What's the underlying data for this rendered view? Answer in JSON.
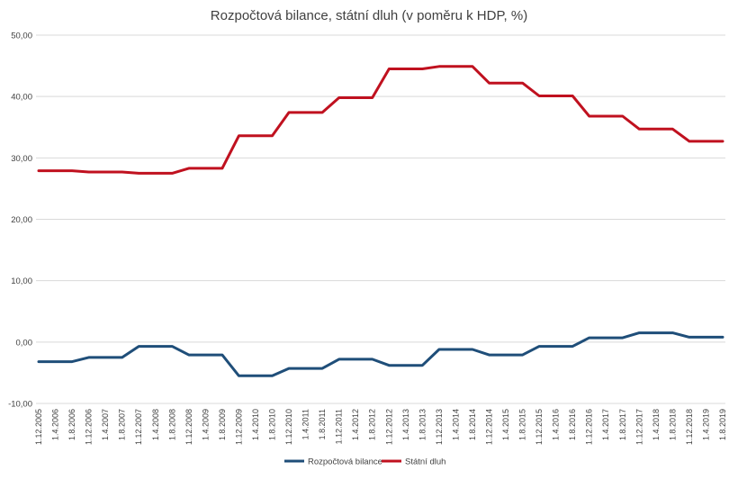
{
  "chart_data": {
    "type": "line",
    "title": "Rozpočtová bilance, státní dluh (v poměru k HDP, %)",
    "xlabel": "",
    "ylabel": "",
    "ylim": [
      -10,
      50
    ],
    "yticks": [
      "-10,00",
      "0,00",
      "10,00",
      "20,00",
      "30,00",
      "40,00",
      "50,00"
    ],
    "ytick_values": [
      -10,
      0,
      10,
      20,
      30,
      40,
      50
    ],
    "grid": true,
    "legend": "bottom",
    "categories": [
      "1.12.2005",
      "1.4.2006",
      "1.8.2006",
      "1.12.2006",
      "1.4.2007",
      "1.8.2007",
      "1.12.2007",
      "1.4.2008",
      "1.8.2008",
      "1.12.2008",
      "1.4.2009",
      "1.8.2009",
      "1.12.2009",
      "1.4.2010",
      "1.8.2010",
      "1.12.2010",
      "1.4.2011",
      "1.8.2011",
      "1.12.2011",
      "1.4.2012",
      "1.8.2012",
      "1.12.2012",
      "1.4.2013",
      "1.8.2013",
      "1.12.2013",
      "1.4.2014",
      "1.8.2014",
      "1.12.2014",
      "1.4.2015",
      "1.8.2015",
      "1.12.2015",
      "1.4.2016",
      "1.8.2016",
      "1.12.2016",
      "1.4.2017",
      "1.8.2017",
      "1.12.2017",
      "1.4.2018",
      "1.8.2018",
      "1.12.2018",
      "1.4.2019",
      "1.8.2019"
    ],
    "series": [
      {
        "name": "Rozpočtová bilance",
        "color": "#1f4e79",
        "values": [
          -3.2,
          -3.2,
          -3.2,
          -2.5,
          -2.5,
          -2.5,
          -0.7,
          -0.7,
          -0.7,
          -2.1,
          -2.1,
          -2.1,
          -5.5,
          -5.5,
          -5.5,
          -4.3,
          -4.3,
          -4.3,
          -2.8,
          -2.8,
          -2.8,
          -3.8,
          -3.8,
          -3.8,
          -1.2,
          -1.2,
          -1.2,
          -2.1,
          -2.1,
          -2.1,
          -0.7,
          -0.7,
          -0.7,
          0.7,
          0.7,
          0.7,
          1.5,
          1.5,
          1.5,
          0.8,
          0.8,
          0.8
        ]
      },
      {
        "name": "Státní dluh",
        "color": "#c0111f",
        "values": [
          27.9,
          27.9,
          27.9,
          27.7,
          27.7,
          27.7,
          27.5,
          27.5,
          27.5,
          28.3,
          28.3,
          28.3,
          33.6,
          33.6,
          33.6,
          37.4,
          37.4,
          37.4,
          39.8,
          39.8,
          39.8,
          44.5,
          44.5,
          44.5,
          44.9,
          44.9,
          44.9,
          42.2,
          42.2,
          42.2,
          40.1,
          40.1,
          40.1,
          36.8,
          36.8,
          36.8,
          34.7,
          34.7,
          34.7,
          32.7,
          32.7,
          32.7
        ]
      }
    ]
  }
}
